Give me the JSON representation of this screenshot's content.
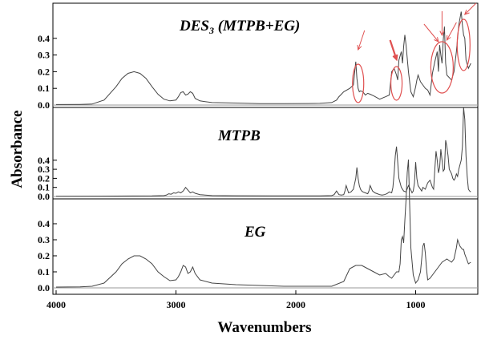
{
  "chart_data": {
    "type": "line",
    "ylabel": "Absorbance",
    "xlabel": "Wavenumbers",
    "xlim": [
      4000,
      500
    ],
    "x_ticks": [
      4000,
      3000,
      2000,
      1000
    ],
    "y_ticks": [
      0.0,
      0.1,
      0.2,
      0.3,
      0.4
    ],
    "panels": [
      {
        "title": "DES3 (MTPB+EG)",
        "title_main_a": "DES",
        "title_sub": "3",
        "title_main_b": " (MTPB+EG)",
        "line_color": "#444444",
        "x": [
          4000,
          3800,
          3700,
          3600,
          3500,
          3450,
          3400,
          3350,
          3300,
          3250,
          3200,
          3150,
          3100,
          3050,
          3000,
          2980,
          2960,
          2940,
          2920,
          2900,
          2880,
          2860,
          2840,
          2800,
          2700,
          2500,
          2300,
          2100,
          1900,
          1800,
          1700,
          1660,
          1640,
          1600,
          1550,
          1520,
          1500,
          1490,
          1480,
          1470,
          1460,
          1440,
          1420,
          1400,
          1380,
          1350,
          1300,
          1250,
          1220,
          1200,
          1180,
          1160,
          1150,
          1140,
          1120,
          1110,
          1100,
          1090,
          1080,
          1060,
          1040,
          1020,
          1000,
          990,
          980,
          960,
          940,
          920,
          900,
          880,
          860,
          840,
          820,
          810,
          800,
          790,
          780,
          770,
          760,
          750,
          740,
          700,
          680,
          660,
          640,
          630,
          620,
          610,
          600,
          590,
          580,
          560,
          540
        ],
        "y": [
          0.003,
          0.004,
          0.006,
          0.03,
          0.11,
          0.16,
          0.19,
          0.2,
          0.19,
          0.16,
          0.11,
          0.065,
          0.035,
          0.025,
          0.03,
          0.05,
          0.075,
          0.08,
          0.06,
          0.065,
          0.08,
          0.07,
          0.04,
          0.025,
          0.015,
          0.012,
          0.008,
          0.008,
          0.009,
          0.01,
          0.015,
          0.03,
          0.05,
          0.08,
          0.1,
          0.12,
          0.26,
          0.16,
          0.1,
          0.08,
          0.085,
          0.08,
          0.06,
          0.07,
          0.065,
          0.055,
          0.035,
          0.05,
          0.06,
          0.2,
          0.22,
          0.18,
          0.15,
          0.27,
          0.32,
          0.25,
          0.35,
          0.42,
          0.36,
          0.2,
          0.08,
          0.05,
          0.11,
          0.15,
          0.18,
          0.14,
          0.12,
          0.1,
          0.09,
          0.06,
          0.19,
          0.26,
          0.32,
          0.2,
          0.36,
          0.3,
          0.25,
          0.39,
          0.47,
          0.25,
          0.18,
          0.15,
          0.2,
          0.32,
          0.48,
          0.52,
          0.56,
          0.48,
          0.42,
          0.4,
          0.27,
          0.22,
          0.25
        ]
      },
      {
        "title": "MTPB",
        "line_color": "#444444",
        "x": [
          4000,
          3500,
          3200,
          3100,
          3080,
          3060,
          3040,
          3020,
          3000,
          2980,
          2960,
          2940,
          2920,
          2900,
          2880,
          2860,
          2840,
          2800,
          2700,
          2500,
          2200,
          2000,
          1800,
          1700,
          1680,
          1660,
          1640,
          1620,
          1600,
          1590,
          1580,
          1560,
          1540,
          1520,
          1500,
          1490,
          1480,
          1470,
          1460,
          1450,
          1440,
          1420,
          1400,
          1390,
          1380,
          1360,
          1340,
          1320,
          1300,
          1280,
          1260,
          1240,
          1220,
          1200,
          1190,
          1180,
          1170,
          1160,
          1150,
          1140,
          1120,
          1100,
          1080,
          1060,
          1040,
          1030,
          1020,
          1010,
          1000,
          990,
          980,
          970,
          960,
          950,
          940,
          920,
          900,
          880,
          860,
          850,
          840,
          830,
          820,
          810,
          800,
          790,
          780,
          770,
          760,
          750,
          740,
          730,
          720,
          700,
          690,
          680,
          670,
          660,
          650,
          640,
          630,
          620,
          610,
          600,
          590,
          580,
          570,
          560,
          550,
          540
        ],
        "y": [
          0.002,
          0.004,
          0.006,
          0.01,
          0.015,
          0.03,
          0.025,
          0.04,
          0.035,
          0.05,
          0.04,
          0.06,
          0.1,
          0.07,
          0.04,
          0.05,
          0.035,
          0.02,
          0.01,
          0.008,
          0.006,
          0.006,
          0.006,
          0.01,
          0.02,
          0.06,
          0.02,
          0.015,
          0.02,
          0.06,
          0.12,
          0.04,
          0.05,
          0.08,
          0.2,
          0.32,
          0.2,
          0.12,
          0.08,
          0.06,
          0.05,
          0.04,
          0.03,
          0.06,
          0.12,
          0.06,
          0.04,
          0.03,
          0.02,
          0.015,
          0.02,
          0.03,
          0.05,
          0.04,
          0.1,
          0.25,
          0.45,
          0.55,
          0.38,
          0.2,
          0.1,
          0.06,
          0.05,
          0.12,
          0.07,
          0.04,
          0.06,
          0.15,
          0.38,
          0.2,
          0.12,
          0.1,
          0.08,
          0.06,
          0.1,
          0.08,
          0.15,
          0.18,
          0.1,
          0.08,
          0.3,
          0.5,
          0.4,
          0.26,
          0.32,
          0.52,
          0.4,
          0.28,
          0.3,
          0.62,
          0.55,
          0.45,
          0.3,
          0.25,
          0.2,
          0.18,
          0.2,
          0.25,
          0.22,
          0.3,
          0.35,
          0.4,
          0.55,
          0.98,
          0.85,
          0.45,
          0.22,
          0.08,
          0.06,
          0.05
        ]
      },
      {
        "title": "EG",
        "line_color": "#444444",
        "x": [
          4000,
          3800,
          3700,
          3600,
          3500,
          3450,
          3400,
          3350,
          3300,
          3250,
          3200,
          3150,
          3100,
          3050,
          3000,
          2980,
          2960,
          2940,
          2920,
          2900,
          2880,
          2860,
          2840,
          2800,
          2700,
          2500,
          2300,
          2100,
          1900,
          1700,
          1600,
          1550,
          1500,
          1450,
          1400,
          1350,
          1300,
          1250,
          1220,
          1200,
          1180,
          1160,
          1140,
          1130,
          1120,
          1110,
          1100,
          1090,
          1080,
          1070,
          1060,
          1050,
          1040,
          1020,
          1000,
          980,
          960,
          950,
          940,
          930,
          920,
          910,
          900,
          880,
          860,
          840,
          820,
          800,
          780,
          760,
          740,
          720,
          700,
          680,
          660,
          650,
          640,
          630,
          620,
          610,
          600,
          590,
          580,
          560,
          540
        ],
        "y": [
          0.005,
          0.006,
          0.01,
          0.03,
          0.1,
          0.15,
          0.18,
          0.2,
          0.2,
          0.18,
          0.15,
          0.1,
          0.07,
          0.045,
          0.05,
          0.07,
          0.1,
          0.14,
          0.13,
          0.09,
          0.1,
          0.13,
          0.09,
          0.05,
          0.03,
          0.02,
          0.015,
          0.01,
          0.01,
          0.01,
          0.04,
          0.12,
          0.14,
          0.14,
          0.12,
          0.1,
          0.08,
          0.09,
          0.07,
          0.06,
          0.08,
          0.1,
          0.1,
          0.15,
          0.3,
          0.32,
          0.28,
          0.42,
          0.55,
          0.72,
          0.8,
          0.52,
          0.25,
          0.08,
          0.03,
          0.05,
          0.1,
          0.18,
          0.26,
          0.28,
          0.22,
          0.12,
          0.05,
          0.06,
          0.08,
          0.1,
          0.12,
          0.14,
          0.16,
          0.17,
          0.18,
          0.17,
          0.16,
          0.18,
          0.25,
          0.3,
          0.28,
          0.26,
          0.25,
          0.24,
          0.24,
          0.21,
          0.19,
          0.15,
          0.16
        ]
      }
    ],
    "annotations": {
      "color": "#e05050",
      "ellipses_at_wavenumber": [
        1480,
        1160,
        780,
        600
      ],
      "arrows_at_wavenumber": [
        1480,
        1160,
        810,
        780,
        740,
        590
      ]
    }
  }
}
